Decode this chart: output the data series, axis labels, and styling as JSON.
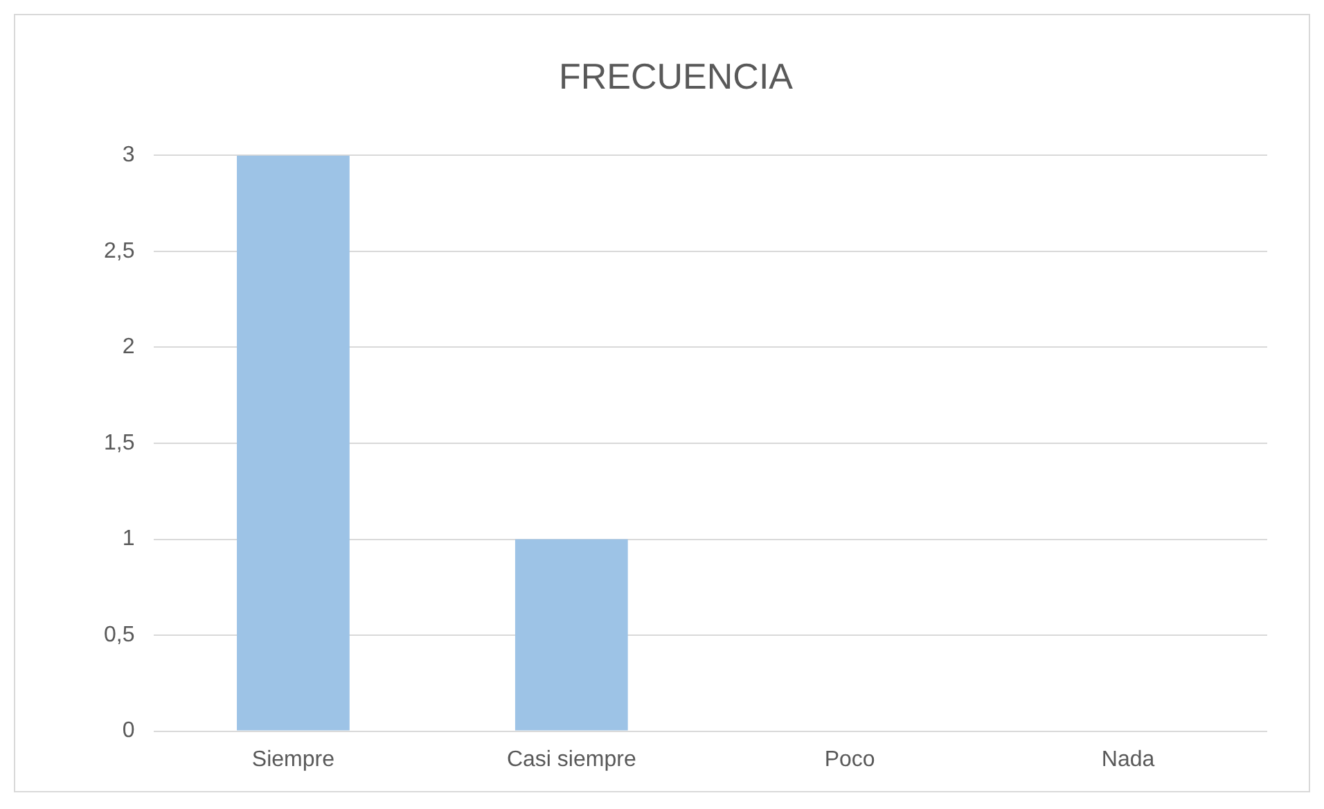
{
  "chart_data": {
    "type": "bar",
    "title": "FRECUENCIA",
    "categories": [
      "Siempre",
      "Casi siempre",
      "Poco",
      "Nada"
    ],
    "values": [
      3,
      1,
      0,
      0
    ],
    "color": "#9dc3e6",
    "ylim": [
      0,
      3
    ],
    "yticks": [
      0,
      {
        "value": 0.5,
        "label": "0,5"
      },
      1,
      {
        "value": 1.5,
        "label": "1,5"
      },
      2,
      {
        "value": 2.5,
        "label": "2,5"
      },
      3
    ],
    "grid": "y",
    "legend": false
  }
}
